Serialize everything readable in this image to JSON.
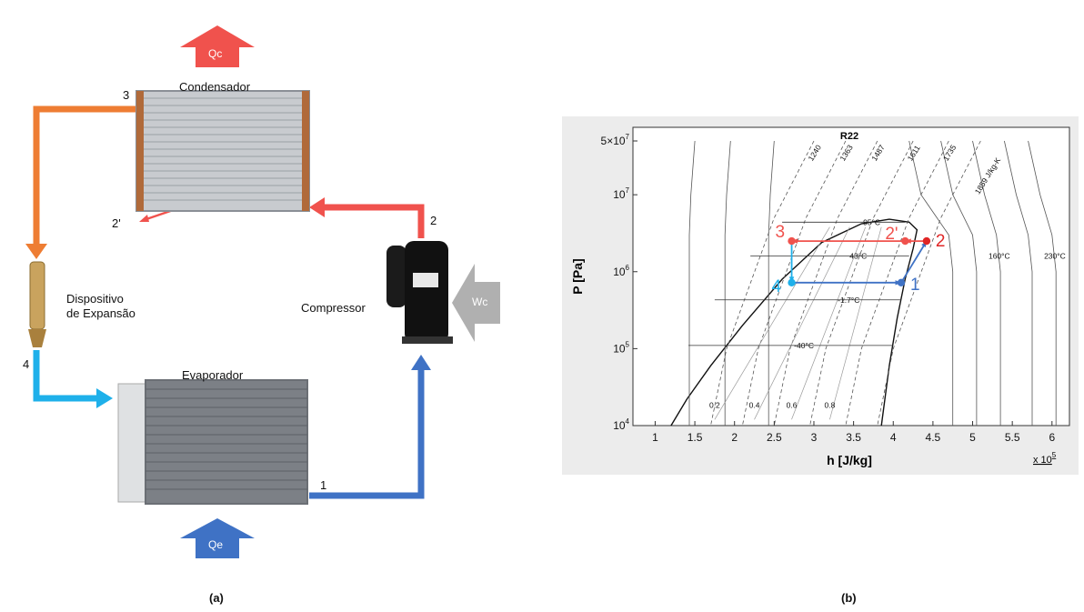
{
  "diagram": {
    "panel_a": {
      "caption": "(a)",
      "components": {
        "condenser": "Condensador",
        "evaporator": "Evaporador",
        "compressor": "Compressor",
        "expansion_device_line1": "Dispositivo",
        "expansion_device_line2": "de Expansão"
      },
      "flows": {
        "heat_condenser": "Qc",
        "heat_evaporator": "Qe",
        "work_compressor": "Wc"
      },
      "state_points": [
        "1",
        "2",
        "2'",
        "3",
        "4"
      ],
      "colors": {
        "hot_line": "#f0524d",
        "condensate_line": "#ee7d33",
        "cold_line": "#1eb0ea",
        "suction_line": "#3f72c5",
        "work_arrow": "#b0b0b0"
      }
    },
    "panel_b": {
      "caption": "(b)"
    }
  },
  "chart_data": {
    "type": "line",
    "title": "R22",
    "xlabel": "h [J/kg]",
    "ylabel": "P [Pa]",
    "x_multiplier": "x 10",
    "x_multiplier_exp": "5",
    "x_ticks": [
      "1",
      "1.5",
      "2",
      "2.5",
      "3",
      "3.5",
      "4",
      "4.5",
      "5",
      "5.5",
      "6"
    ],
    "y_ticks": [
      {
        "mantissa": "",
        "exp": "4"
      },
      {
        "mantissa": "",
        "exp": "5"
      },
      {
        "mantissa": "",
        "exp": "6"
      },
      {
        "mantissa": "",
        "exp": "7"
      },
      {
        "mantissa": "5×",
        "exp": "7"
      }
    ],
    "xlim": [
      1,
      6.2
    ],
    "ylim": [
      10000,
      50000000
    ],
    "y_scale": "log",
    "isotherm_labels": [
      "95°C",
      "43°C",
      "-1.7°C",
      "-40°C",
      "160°C",
      "230°C"
    ],
    "entropy_labels": [
      "1240",
      "1363",
      "1487",
      "1611",
      "1735",
      "1859 J/kg-K"
    ],
    "quality_labels": [
      "0.2",
      "0.4",
      "0.6",
      "0.8"
    ],
    "cycle_points": [
      {
        "label": "1",
        "h": 4.1,
        "P": 720000,
        "color": "#3f72c5"
      },
      {
        "label": "2",
        "h": 4.42,
        "P": 2500000,
        "color": "#e02626"
      },
      {
        "label": "2'",
        "h": 4.15,
        "P": 2500000,
        "color": "#f0524d"
      },
      {
        "label": "3",
        "h": 2.72,
        "P": 2500000,
        "color": "#f0524d"
      },
      {
        "label": "4",
        "h": 2.72,
        "P": 720000,
        "color": "#1eb0ea"
      }
    ]
  }
}
